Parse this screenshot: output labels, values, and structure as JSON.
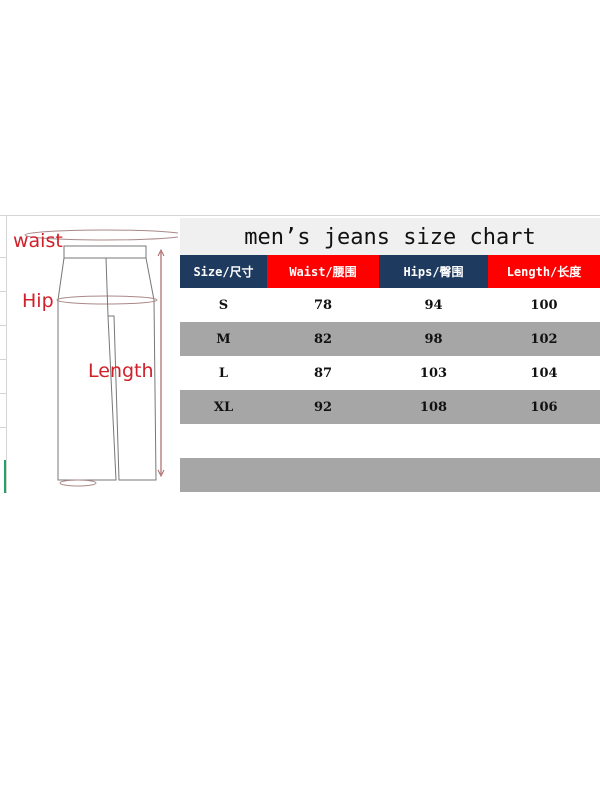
{
  "title": "men’s jeans size chart",
  "diagram_labels": {
    "waist": "waist",
    "hip": "Hip",
    "length": "Length"
  },
  "headers": [
    "Size/尺寸",
    "Waist/腰围",
    "Hips/臀围",
    "Length/长度"
  ],
  "rows": [
    [
      "S",
      "78",
      "94",
      "100"
    ],
    [
      "M",
      "82",
      "98",
      "102"
    ],
    [
      "L",
      "87",
      "103",
      "104"
    ],
    [
      "XL",
      "92",
      "108",
      "106"
    ]
  ],
  "colors": {
    "header_navy": "#1f3a5f",
    "header_red": "#ff0000",
    "stripe_gray": "#a6a6a6",
    "label_red": "#d0202a"
  }
}
